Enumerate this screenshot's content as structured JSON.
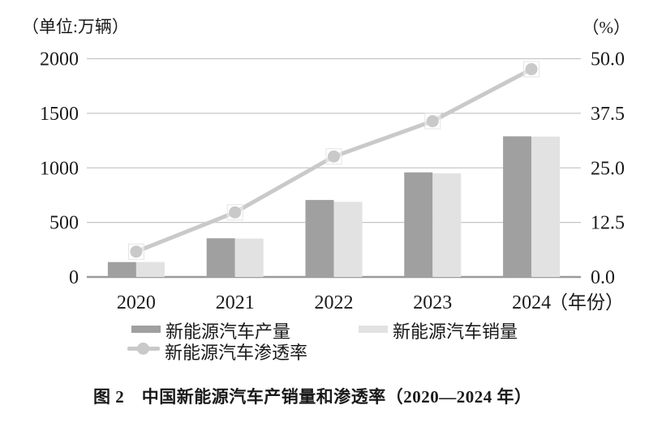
{
  "figure": {
    "caption": "图 2　中国新能源汽车产销量和渗透率（2020—2024 年）"
  },
  "colors": {
    "production_bar": "#a0a0a0",
    "sales_bar": "#e2e2e2",
    "penetration_line": "#c9c9c9",
    "marker_halo": "#e4e4e4",
    "gridline": "#c6c6c6",
    "axis_line": "#9a9a9a",
    "text": "#1a1a1a"
  },
  "chart_data": {
    "type": "bar",
    "subtype": "grouped bars with secondary-axis line",
    "title": "图 2　中国新能源汽车产销量和渗透率（2020—2024 年）",
    "categories": [
      "2020",
      "2021",
      "2022",
      "2023",
      "2024"
    ],
    "x_label_suffix": "（年份）",
    "series": [
      {
        "name": "新能源汽车产量",
        "type": "bar",
        "axis": "left",
        "values": [
          136.6,
          354.5,
          705.8,
          958.7,
          1288.8
        ]
      },
      {
        "name": "新能源汽车销量",
        "type": "bar",
        "axis": "left",
        "values": [
          136.7,
          352.1,
          688.7,
          949.5,
          1286.6
        ]
      },
      {
        "name": "新能源汽车渗透率",
        "type": "line",
        "axis": "right",
        "values": [
          5.8,
          14.8,
          27.6,
          35.7,
          47.6
        ]
      }
    ],
    "left_axis": {
      "label": "（单位:万辆）",
      "min": 0,
      "max": 2000,
      "ticks": [
        "0",
        "500",
        "1000",
        "1500",
        "2000"
      ]
    },
    "right_axis": {
      "label": "（%）",
      "min": 0,
      "max": 50,
      "ticks": [
        "0.0",
        "12.5",
        "25.0",
        "37.5",
        "50.0"
      ]
    },
    "grid": true,
    "legend_position": "bottom"
  }
}
